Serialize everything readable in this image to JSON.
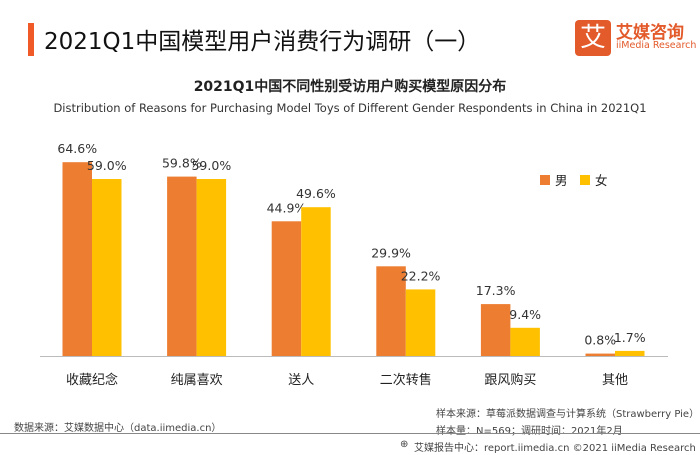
{
  "header": {
    "title": "2021Q1中国模型用户消费行为调研（一）",
    "logo_mark": "艾",
    "logo_cn": "艾媒咨询",
    "logo_en": "iiMedia Research"
  },
  "chart_data": {
    "type": "bar",
    "title": "2021Q1中国不同性别受访用户购买模型原因分布",
    "subtitle": "Distribution of Reasons for Purchasing Model Toys of Different Gender Respondents in China in 2021Q1",
    "categories": [
      "收藏纪念",
      "纯属喜欢",
      "送人",
      "二次转售",
      "跟风购买",
      "其他"
    ],
    "series": [
      {
        "name": "男",
        "color": "#ED7D31",
        "values": [
          64.6,
          59.8,
          44.9,
          29.9,
          17.3,
          0.8
        ]
      },
      {
        "name": "女",
        "color": "#FFC000",
        "values": [
          59.0,
          59.0,
          49.6,
          22.2,
          9.4,
          1.7
        ]
      }
    ],
    "unit": "%",
    "ylim": [
      0,
      70
    ],
    "grid": false,
    "legend": "top-right"
  },
  "footer": {
    "source": "数据来源：艾媒数据中心（data.iimedia.cn）",
    "sample_source": "样本来源：草莓派数据调查与计算系统（Strawberry Pie）",
    "sample_size": "样本量：N=569；调研时间：2021年2月",
    "copyright": "艾媒报告中心：report.iimedia.cn  ©2021  iiMedia Research  Inc"
  }
}
